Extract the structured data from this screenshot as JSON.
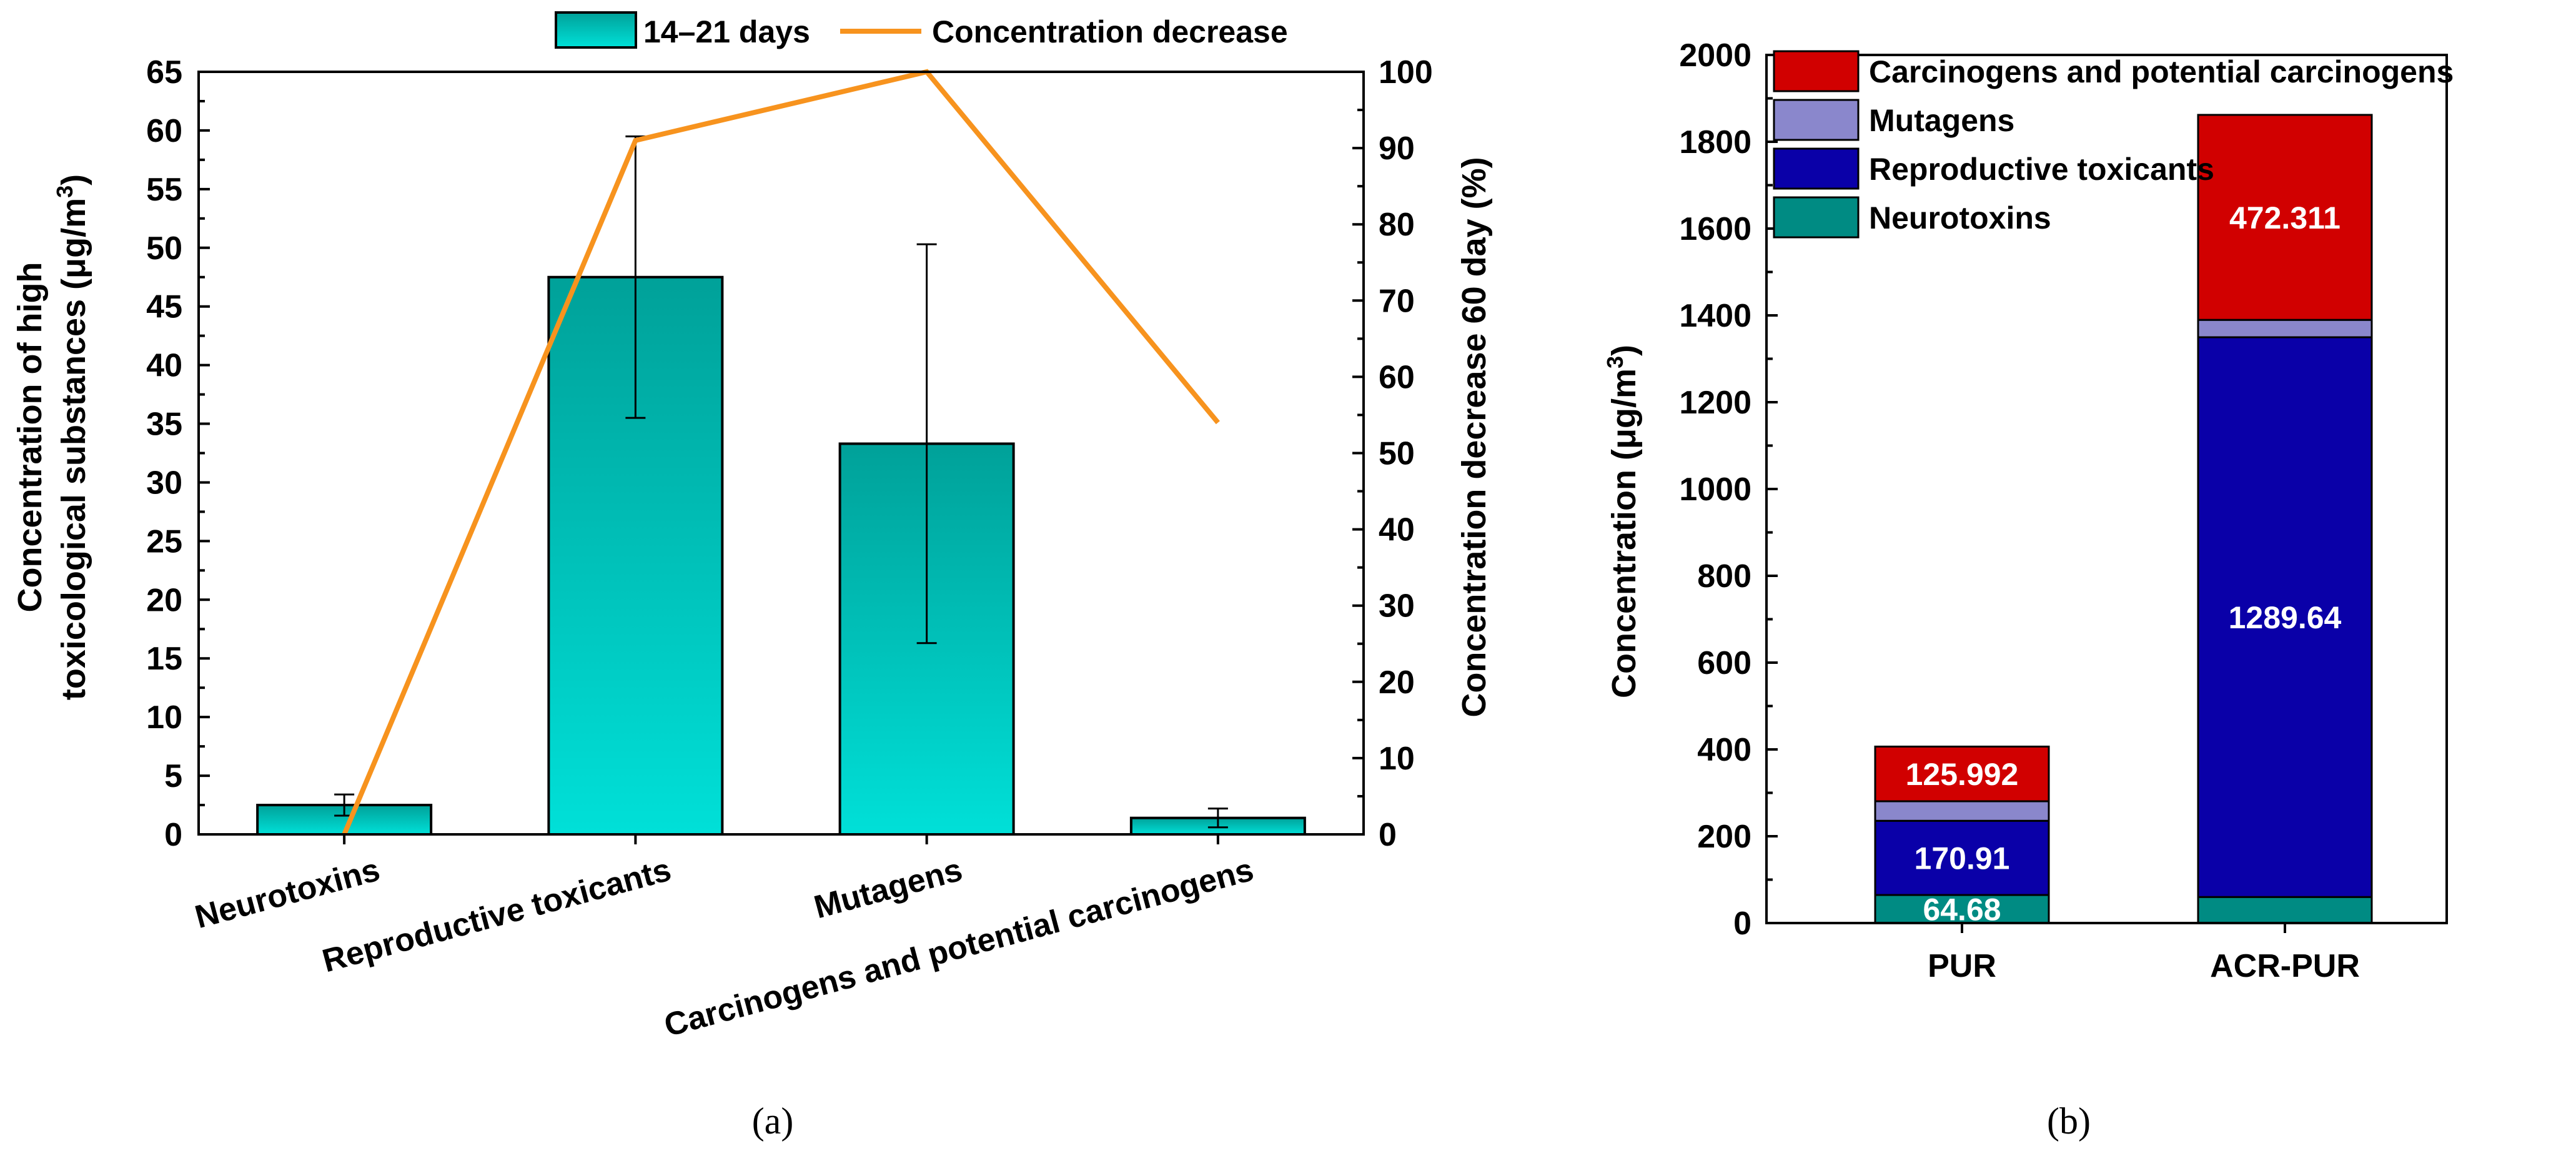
{
  "chart_data": [
    {
      "panel_label": "(a)",
      "type": "bar",
      "categories": [
        "Neurotoxins",
        "Reproductive toxicants",
        "Mutagens",
        "Carcinogens and potential carcinogens"
      ],
      "series": [
        {
          "name": "14–21 days",
          "type": "bar",
          "axis": "left",
          "color_top": "#00A199",
          "color_bottom": "#00E0D8",
          "values": [
            2.5,
            47.5,
            33.3,
            1.4
          ],
          "error": [
            0.9,
            12.0,
            17.0,
            0.8
          ]
        },
        {
          "name": "Concentration decrease",
          "type": "line",
          "axis": "right",
          "color": "#F7931E",
          "values": [
            0,
            91,
            100,
            54
          ]
        }
      ],
      "ylabel_lines": [
        "Concentration of high",
        "toxicological substances (μg/m",
        "3",
        ")"
      ],
      "y2label": "Concentration decrease 60 day (%)",
      "ylim": [
        0,
        65
      ],
      "yticks": [
        "0",
        "5",
        "10",
        "15",
        "20",
        "25",
        "30",
        "35",
        "40",
        "45",
        "50",
        "55",
        "60",
        "65"
      ],
      "y2lim": [
        0,
        100
      ],
      "y2ticks": [
        "0",
        "10",
        "20",
        "30",
        "40",
        "50",
        "60",
        "70",
        "80",
        "90",
        "100"
      ],
      "legend_position": "top"
    },
    {
      "panel_label": "(b)",
      "type": "bar",
      "stacked": true,
      "categories": [
        "PUR",
        "ACR-PUR"
      ],
      "series": [
        {
          "name": "Neurotoxins",
          "color": "#008B83",
          "values": [
            64.68,
            60
          ],
          "labels": [
            "64.68",
            ""
          ]
        },
        {
          "name": "Reproductive toxicants",
          "color": "#0A00A8",
          "values": [
            170.91,
            1289.64
          ],
          "labels": [
            "170.91",
            "1289.64"
          ]
        },
        {
          "name": "Mutagens",
          "color": "#8A87CC",
          "values": [
            45,
            40
          ],
          "labels": [
            "",
            ""
          ]
        },
        {
          "name": "Carcinogens and potential carcinogens",
          "color": "#D10000",
          "values": [
            125.992,
            472.311
          ],
          "labels": [
            "125.992",
            "472.311"
          ]
        }
      ],
      "ylabel_main": "Concentration (μg/m",
      "ylabel_sup": "3",
      "ylabel_end": ")",
      "ylim": [
        0,
        2000
      ],
      "yticks": [
        "0",
        "200",
        "400",
        "600",
        "800",
        "1000",
        "1200",
        "1400",
        "1600",
        "1800",
        "2000"
      ],
      "legend_position": "top-left",
      "legend_order": [
        "Carcinogens and potential carcinogens",
        "Mutagens",
        "Reproductive toxicants",
        "Neurotoxins"
      ]
    }
  ]
}
